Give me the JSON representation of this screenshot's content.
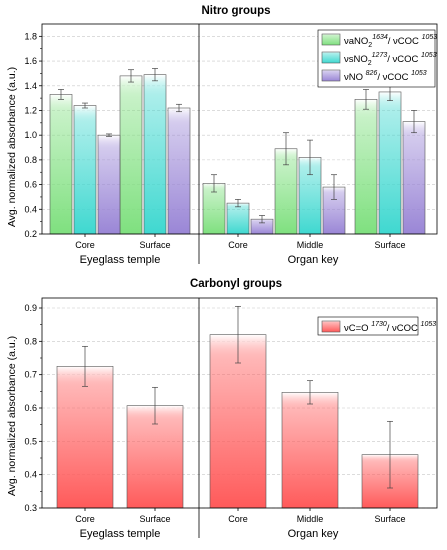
{
  "chart_data": [
    {
      "type": "bar",
      "title": "Nitro groups",
      "ylabel": "Avg. normalized absorbance (a.u.)",
      "ylim": [
        0.2,
        1.9
      ],
      "yticks": [
        "0.2",
        "0.4",
        "0.6",
        "0.8",
        "1.0",
        "1.2",
        "1.4",
        "1.6",
        "1.8"
      ],
      "groups": [
        {
          "label": "Eyeglass temple",
          "categories": [
            "Core",
            "Surface"
          ]
        },
        {
          "label": "Organ key",
          "categories": [
            "Core",
            "Middle",
            "Surface"
          ]
        }
      ],
      "categories": [
        "Core",
        "Surface",
        "Core",
        "Middle",
        "Surface"
      ],
      "legend": "top-right",
      "series": [
        {
          "name": "νaNO",
          "sub": "2",
          "sup": "1634",
          "name2": "/ νCOC ",
          "sup2": "1053",
          "color": "#7fe07f",
          "values": [
            1.33,
            1.48,
            0.61,
            0.89,
            1.29
          ],
          "errors": [
            0.04,
            0.05,
            0.07,
            0.13,
            0.08
          ]
        },
        {
          "name": "νsNO",
          "sub": "2",
          "sup": "1273",
          "name2": "/ νCOC ",
          "sup2": "1053",
          "color": "#3fd8d0",
          "values": [
            1.24,
            1.49,
            0.45,
            0.82,
            1.35
          ],
          "errors": [
            0.02,
            0.05,
            0.03,
            0.14,
            0.07
          ]
        },
        {
          "name": "νNO ",
          "sub": "",
          "sup": "826",
          "name2": "/ νCOC ",
          "sup2": "1053",
          "color": "#9a86d6",
          "values": [
            1.0,
            1.22,
            0.32,
            0.58,
            1.11
          ],
          "errors": [
            0.01,
            0.03,
            0.03,
            0.1,
            0.09
          ]
        }
      ]
    },
    {
      "type": "bar",
      "title": "Carbonyl groups",
      "ylabel": "Avg. normalized absorbance (a.u.)",
      "ylim": [
        0.3,
        0.93
      ],
      "yticks": [
        "0.3",
        "0.4",
        "0.5",
        "0.6",
        "0.7",
        "0.8",
        "0.9"
      ],
      "groups": [
        {
          "label": "Eyeglass temple",
          "categories": [
            "Core",
            "Surface"
          ]
        },
        {
          "label": "Organ key",
          "categories": [
            "Core",
            "Middle",
            "Surface"
          ]
        }
      ],
      "categories": [
        "Core",
        "Surface",
        "Core",
        "Middle",
        "Surface"
      ],
      "legend": "top-right",
      "series": [
        {
          "name": "νC=O ",
          "sub": "",
          "sup": "1730",
          "name2": "/ νCOC ",
          "sup2": "1053",
          "color": "#ff5a5a",
          "values": [
            0.725,
            0.607,
            0.82,
            0.647,
            0.46
          ],
          "errors": [
            0.06,
            0.055,
            0.085,
            0.035,
            0.1
          ]
        }
      ]
    }
  ]
}
